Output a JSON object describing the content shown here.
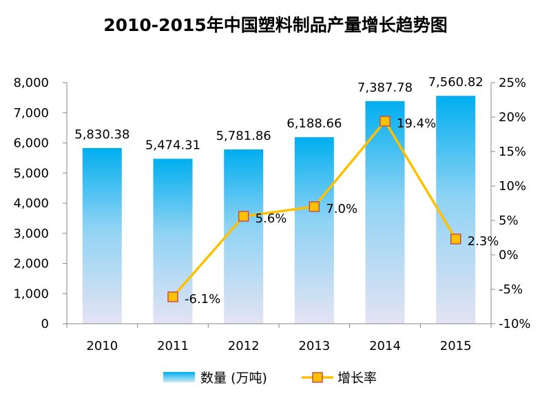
{
  "chart_data": {
    "type": "bar",
    "title": "2010-2015年中国塑料制品产量增长趋势图",
    "categories": [
      "2010",
      "2011",
      "2012",
      "2013",
      "2014",
      "2015"
    ],
    "series": [
      {
        "name": "数量 (万吨)",
        "kind": "bar",
        "axis": "left",
        "values": [
          5830.38,
          5474.31,
          5781.86,
          6188.66,
          7387.78,
          7560.82
        ],
        "labels": [
          "5,830.38",
          "5,474.31",
          "5,781.86",
          "6,188.66",
          "7,387.78",
          "7,560.82"
        ],
        "color_top": "#00AEEF",
        "color_bottom": "#E4E3F3"
      },
      {
        "name": "增长率",
        "kind": "line",
        "axis": "right",
        "values": [
          null,
          -6.1,
          5.6,
          7.0,
          19.4,
          2.3
        ],
        "labels": [
          "",
          "-6.1%",
          "5.6%",
          "7.0%",
          "19.4%",
          "2.3%"
        ],
        "line_color": "#FFC000",
        "marker_fill": "#FFC000",
        "marker_stroke": "#C0504D"
      }
    ],
    "y_left": {
      "min": 0,
      "max": 8000,
      "step": 1000,
      "tick_labels": [
        "0",
        "1,000",
        "2,000",
        "3,000",
        "4,000",
        "5,000",
        "6,000",
        "7,000",
        "8,000"
      ]
    },
    "y_right": {
      "min": -10,
      "max": 25,
      "step": 5,
      "tick_labels": [
        "-10%",
        "-5%",
        "0%",
        "5%",
        "10%",
        "15%",
        "20%",
        "25%"
      ]
    },
    "grid": false,
    "legend": {
      "position": "bottom",
      "entries": [
        "数量 (万吨)",
        "增长率"
      ]
    }
  }
}
